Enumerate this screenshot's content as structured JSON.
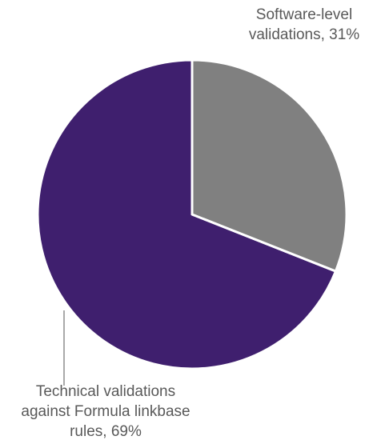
{
  "chart_data": {
    "type": "pie",
    "categories": [
      "Software-level validations, 31%",
      "Technical validations against Formula linkbase rules, 69%"
    ],
    "values": [
      31,
      69
    ],
    "colors": [
      "#808080",
      "#3f1f6e"
    ],
    "start_angle": 0,
    "direction": "clockwise"
  }
}
